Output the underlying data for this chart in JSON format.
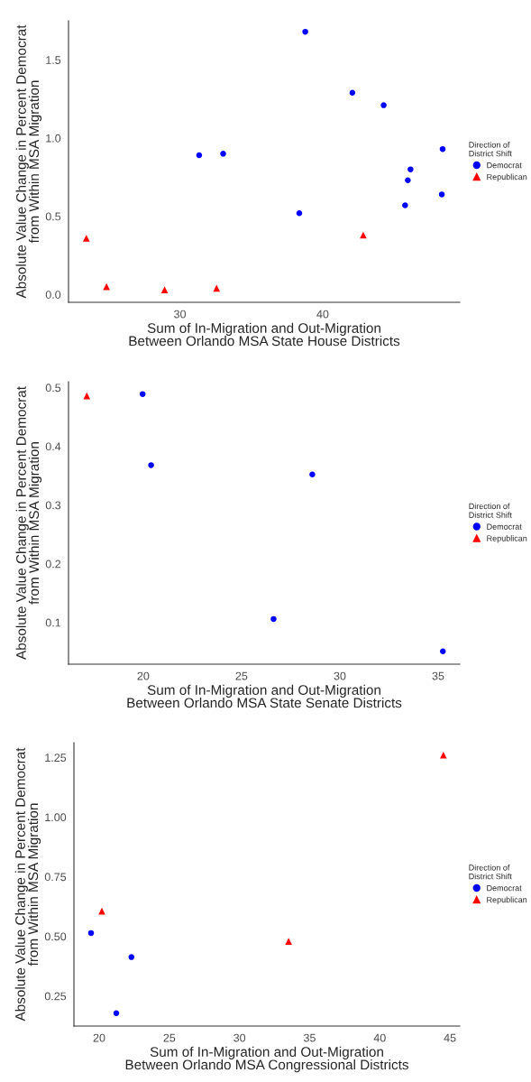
{
  "chart_data": [
    {
      "type": "scatter",
      "xlabel": "Sum of In-Migration and Out-Migration\nBetween Orlando MSA State House Districts",
      "ylabel": "Absolute Value Change in Percent Democrat\nfrom Within MSA Migration",
      "legend_title": "Direction of\nDistrict Shift",
      "legend": "right",
      "grid": false,
      "xlim": [
        22.2,
        49.6
      ],
      "xticks": [
        30,
        40
      ],
      "ylim": [
        -0.05,
        1.75
      ],
      "yticks": [
        {
          "value": 0,
          "label": "0.0"
        },
        0.5,
        {
          "value": 1,
          "label": "1.0"
        },
        1.5
      ],
      "series": [
        {
          "name": "Democrat",
          "color": "#0000ff",
          "marker": "circle",
          "x": [
            38.78,
            42.08,
            44.27,
            31.35,
            33.03,
            48.4,
            46.15,
            45.96,
            48.34,
            45.77,
            38.36
          ],
          "values": [
            1.68,
            1.29,
            1.21,
            0.89,
            0.9,
            0.93,
            0.8,
            0.73,
            0.64,
            0.57,
            0.52
          ]
        },
        {
          "name": "Republican",
          "color": "#ff0000",
          "marker": "triangle",
          "x": [
            23.45,
            24.86,
            28.93,
            32.57,
            42.84
          ],
          "values": [
            0.36,
            0.05,
            0.03,
            0.04,
            0.38
          ]
        }
      ]
    },
    {
      "type": "scatter",
      "xlabel": "Sum of In-Migration and Out-Migration\nBetween Orlando MSA State Senate Districts",
      "ylabel": "Absolute Value Change in Percent Democrat\nfrom Within MSA Migration",
      "legend_title": "Direction of\nDistrict Shift",
      "legend": "right",
      "grid": false,
      "xlim": [
        16.2,
        36.1
      ],
      "xticks": [
        20,
        25,
        30,
        35
      ],
      "ylim": [
        0.029,
        0.51
      ],
      "yticks": [
        0.1,
        0.2,
        0.3,
        0.4,
        0.5
      ],
      "series": [
        {
          "name": "Democrat",
          "color": "#0000ff",
          "marker": "circle",
          "x": [
            19.97,
            20.4,
            28.6,
            26.63,
            35.24
          ],
          "values": [
            0.489,
            0.368,
            0.352,
            0.106,
            0.051
          ]
        },
        {
          "name": "Republican",
          "color": "#ff0000",
          "marker": "triangle",
          "x": [
            17.13
          ],
          "values": [
            0.486
          ]
        }
      ]
    },
    {
      "type": "scatter",
      "xlabel": "Sum of In-Migration and Out-Migration\nBetween Orlando MSA Congressional Districts",
      "ylabel": "Absolute Value Change in Percent Democrat\nfrom Within MSA Migration",
      "legend_title": "Direction of\nDistrict Shift",
      "legend": "right",
      "grid": false,
      "xlim": [
        18.2,
        45.7
      ],
      "xticks": [
        20,
        25,
        30,
        35,
        40,
        45
      ],
      "ylim": [
        0.124,
        1.312
      ],
      "yticks": [
        0.25,
        {
          "value": 0.5,
          "label": "0.50"
        },
        0.75,
        {
          "value": 1,
          "label": "1.00"
        },
        1.25
      ],
      "series": [
        {
          "name": "Democrat",
          "color": "#0000ff",
          "marker": "circle",
          "x": [
            19.42,
            22.3,
            21.22
          ],
          "values": [
            0.514,
            0.413,
            0.178
          ]
        },
        {
          "name": "Republican",
          "color": "#ff0000",
          "marker": "triangle",
          "x": [
            20.19,
            33.5,
            44.53
          ],
          "values": [
            0.606,
            0.479,
            1.26
          ]
        }
      ]
    }
  ]
}
